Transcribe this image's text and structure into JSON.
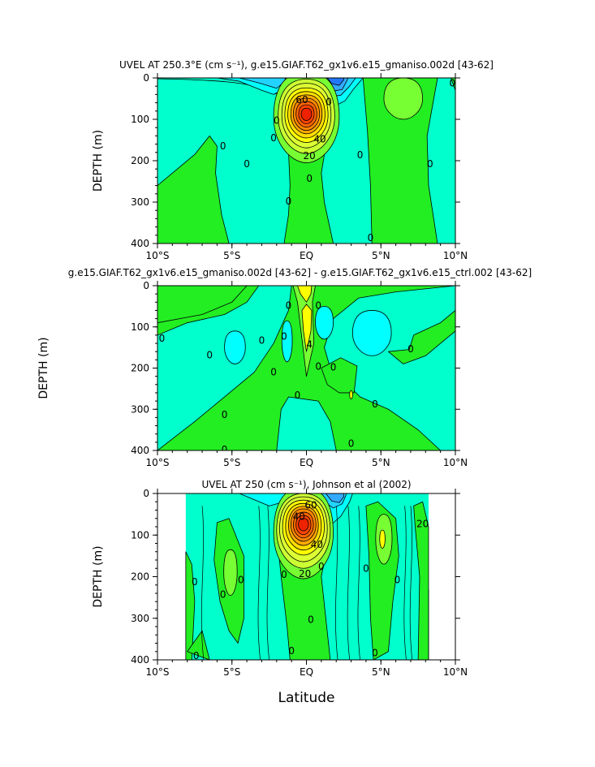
{
  "chart_data": [
    {
      "type": "contour",
      "title": "UVEL AT 250.3°E (cm s⁻¹), g.e15.GIAF.T62_gx1v6.e15_gmaniso.002d [43-62]",
      "ylabel": "DEPTH (m)",
      "xlabel": "",
      "x_ticks": [
        "10°S",
        "5°S",
        "EQ",
        "5°N",
        "10°N"
      ],
      "y_ticks": [
        "0",
        "100",
        "200",
        "300",
        "400"
      ],
      "xlim": [
        -10,
        10
      ],
      "ylim": [
        400,
        0
      ],
      "contour_labels": [
        "0",
        "0",
        "0",
        "0",
        "0",
        "0",
        "0",
        "0",
        "0",
        "20",
        "40",
        "60",
        "0",
        "0"
      ],
      "features": [
        {
          "kind": "eastward core",
          "lat": 0,
          "depth": 90,
          "max_value": 90
        },
        {
          "kind": "westward",
          "lat": 1.6,
          "depth": 20,
          "value": -30
        },
        {
          "kind": "eastward",
          "lat": 6.5,
          "depth": 50,
          "value": 10
        }
      ]
    },
    {
      "type": "contour",
      "title": "g.e15.GIAF.T62_gx1v6.e15_gmaniso.002d [43-62] - g.e15.GIAF.T62_gx1v6.e15_ctrl.002 [43-62]",
      "ylabel": "DEPTH (m)",
      "xlabel": "",
      "x_ticks": [
        "10°S",
        "5°S",
        "EQ",
        "5°N",
        "10°N"
      ],
      "y_ticks": [
        "0",
        "100",
        "200",
        "300",
        "400"
      ],
      "xlim": [
        -10,
        10
      ],
      "ylim": [
        400,
        0
      ],
      "contour_labels": [
        "0",
        "0",
        "0",
        "0",
        "0",
        "0",
        "0",
        "0",
        "0",
        "0",
        "0",
        "0",
        "0",
        "0",
        "0",
        "4"
      ],
      "features": [
        {
          "kind": "positive",
          "lat": -0.1,
          "depth": 100,
          "value": 5
        },
        {
          "kind": "negative",
          "lat": 4.5,
          "depth": 110,
          "value": -3
        }
      ]
    },
    {
      "type": "contour",
      "title": "UVEL AT 250 (cm s⁻¹), Johnson et al (2002)",
      "ylabel": "DEPTH (m)",
      "xlabel": "Latitude",
      "x_ticks": [
        "10°S",
        "5°S",
        "EQ",
        "5°N",
        "10°N"
      ],
      "y_ticks": [
        "0",
        "100",
        "200",
        "300",
        "400"
      ],
      "xlim": [
        -10,
        10
      ],
      "ylim": [
        400,
        0
      ],
      "contour_labels": [
        "0",
        "0",
        "0",
        "0",
        "0",
        "0",
        "0",
        "0",
        "0",
        "0",
        "0",
        "20",
        "40",
        "60",
        "20",
        "40"
      ],
      "features": [
        {
          "kind": "eastward core",
          "lat": -0.2,
          "depth": 80,
          "max_value": 90
        },
        {
          "kind": "eastward",
          "lat": -5.1,
          "depth": 200,
          "value": 10
        },
        {
          "kind": "eastward",
          "lat": 5.0,
          "depth": 110,
          "value": 20
        }
      ]
    }
  ],
  "common": {
    "x_axis_label": "Latitude"
  },
  "palette": {
    "light_blue": "#00ffcc",
    "cyan": "#00ffff",
    "sky": "#22d2ff",
    "blue": "#33aaff",
    "deep_blue": "#2277ff",
    "green": "#22ee22",
    "light_green": "#77ff33",
    "yellow_green": "#ccff33",
    "yellow": "#ffff00",
    "orange": "#ffaa00",
    "red_orange": "#ff6600",
    "red": "#ee2200"
  }
}
